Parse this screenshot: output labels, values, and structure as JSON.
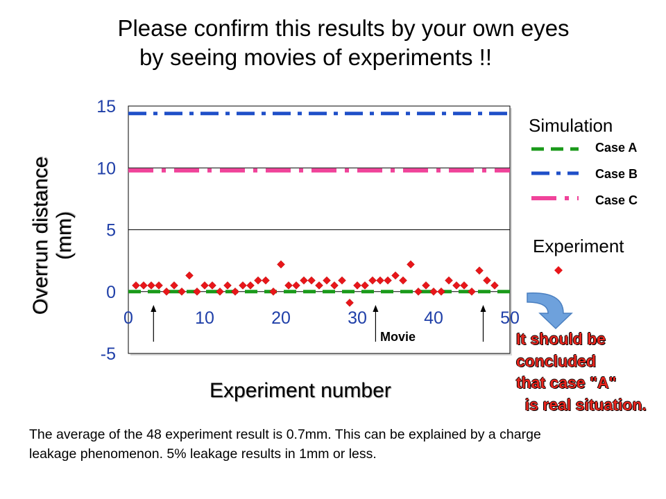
{
  "header": {
    "line1": "Please confirm this results by your own eyes",
    "line2": "by seeing movies of experiments !!"
  },
  "legend": {
    "simulation_title": "Simulation",
    "case_a": "Case A",
    "case_b": "Case B",
    "case_c": "Case C",
    "experiment_title": "Experiment"
  },
  "annotations": {
    "movie": "Movie",
    "conclusion": "It should be\nconcluded\nthat case \"A\"\n  is real situation.",
    "note_line1": "The average of the 48 experiment result is 0.7mm. This can be explained by  a charge",
    "note_line2": " leakage phenomenon. 5% leakage results in 1mm or less."
  },
  "colors": {
    "case_a": "#1a9a1a",
    "case_b": "#1f4fc8",
    "case_c": "#f0439a",
    "experiment": "#e8161a",
    "tick_text": "#1f3fa8"
  },
  "chart_data": {
    "type": "scatter",
    "xlabel": "Experiment number",
    "ylabel": "Overrun distance\n(mm)",
    "xlim": [
      0,
      50
    ],
    "ylim": [
      -5,
      15
    ],
    "xticks": [
      "0",
      "10",
      "20",
      "30",
      "40",
      "50"
    ],
    "yticks": [
      "15",
      "10",
      "5",
      "0",
      "-5"
    ],
    "reference_lines": [
      {
        "name": "Case A",
        "y": 0,
        "style": "dash"
      },
      {
        "name": "Case B",
        "y": 14.4,
        "style": "dash-dot"
      },
      {
        "name": "Case C",
        "y": 9.8,
        "style": "long-dash-dot"
      }
    ],
    "series": [
      {
        "name": "Experiment",
        "x": [
          1,
          2,
          3,
          4,
          5,
          6,
          7,
          8,
          9,
          10,
          11,
          12,
          13,
          14,
          15,
          16,
          17,
          18,
          19,
          20,
          21,
          22,
          23,
          24,
          25,
          26,
          27,
          28,
          29,
          30,
          31,
          32,
          33,
          34,
          35,
          36,
          37,
          38,
          39,
          40,
          41,
          42,
          43,
          44,
          45,
          46,
          47,
          48
        ],
        "y": [
          0.5,
          0.5,
          0.5,
          0.5,
          0,
          0.5,
          0,
          1.3,
          0,
          0.5,
          0.5,
          0,
          0.5,
          0,
          0.5,
          0.5,
          0.9,
          0.9,
          0,
          2.2,
          0.5,
          0.5,
          0.9,
          0.9,
          0.5,
          0.9,
          0.5,
          0.9,
          -0.9,
          0.5,
          0.5,
          0.9,
          0.9,
          0.9,
          1.3,
          0.9,
          2.2,
          0,
          0.5,
          0,
          0,
          0.9,
          0.5,
          0.5,
          0,
          1.7,
          0.9,
          0.5
        ]
      }
    ],
    "movie_markers_x": [
      3.3,
      32.4,
      46.5
    ],
    "grid": "horizontal"
  }
}
